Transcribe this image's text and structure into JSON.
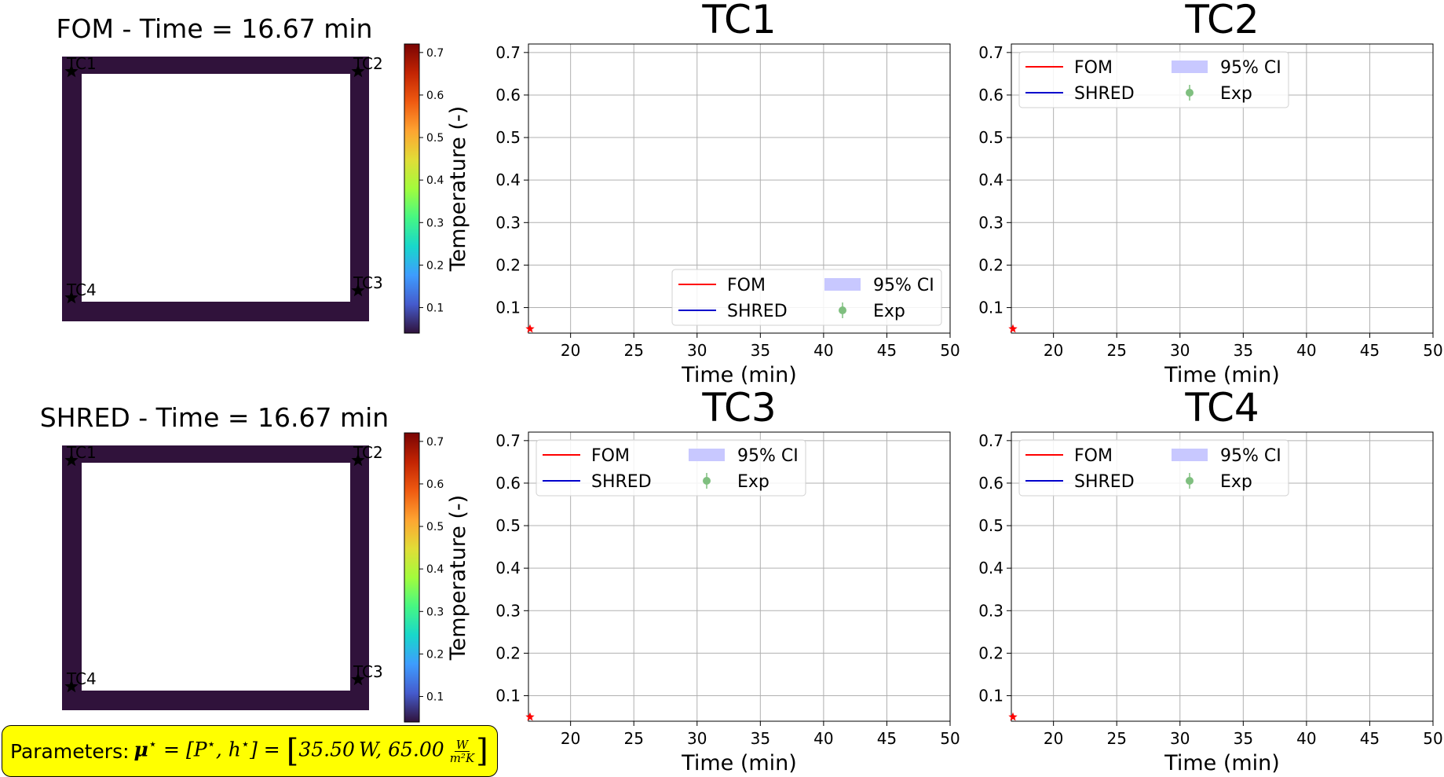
{
  "colors": {
    "fom_line": "#ff0000",
    "shred_line": "#0000cc",
    "ci_fill": "#c8c8ff",
    "exp_marker": "#7fbf7f",
    "field_fill": "#30123b",
    "grid": "#b0b0b0",
    "param_box_bg": "#ffff00"
  },
  "field_panels": [
    {
      "title": "FOM - Time = 16.67 min"
    },
    {
      "title": "SHRED - Time = 16.67 min"
    }
  ],
  "thermocouple_labels": [
    "TC1",
    "TC2",
    "TC3",
    "TC4"
  ],
  "colorbar": {
    "label": "Temperature (-)",
    "ticks": [
      "0.1",
      "0.2",
      "0.3",
      "0.4",
      "0.5",
      "0.6",
      "0.7"
    ],
    "range": [
      0.04,
      0.72
    ],
    "colormap": "turbo"
  },
  "legend_entries": [
    "FOM",
    "SHRED",
    "95% CI",
    "Exp"
  ],
  "chart_data": [
    {
      "type": "line",
      "title": "TC1",
      "xlabel": "Time (min)",
      "ylabel": "",
      "xlim": [
        16.67,
        50
      ],
      "ylim": [
        0.04,
        0.72
      ],
      "xticks": [
        20,
        25,
        30,
        35,
        40,
        45,
        50
      ],
      "yticks": [
        0.1,
        0.2,
        0.3,
        0.4,
        0.5,
        0.6,
        0.7
      ],
      "grid": true,
      "legend": "lower-right",
      "series": [
        {
          "name": "FOM",
          "x": [
            16.67
          ],
          "y": [
            0.05
          ]
        },
        {
          "name": "SHRED",
          "x": [
            16.67
          ],
          "y": [
            0.05
          ]
        }
      ],
      "markers": [
        {
          "x": 16.67,
          "y": 0.05,
          "symbol": "star",
          "color": "#ff0000"
        }
      ]
    },
    {
      "type": "line",
      "title": "TC2",
      "xlabel": "Time (min)",
      "ylabel": "",
      "xlim": [
        16.67,
        50
      ],
      "ylim": [
        0.04,
        0.72
      ],
      "xticks": [
        20,
        25,
        30,
        35,
        40,
        45,
        50
      ],
      "yticks": [
        0.1,
        0.2,
        0.3,
        0.4,
        0.5,
        0.6,
        0.7
      ],
      "grid": true,
      "legend": "upper-left",
      "series": [
        {
          "name": "FOM",
          "x": [
            16.67
          ],
          "y": [
            0.05
          ]
        },
        {
          "name": "SHRED",
          "x": [
            16.67
          ],
          "y": [
            0.05
          ]
        }
      ],
      "markers": [
        {
          "x": 16.67,
          "y": 0.05,
          "symbol": "star",
          "color": "#ff0000"
        }
      ]
    },
    {
      "type": "line",
      "title": "TC3",
      "xlabel": "Time (min)",
      "ylabel": "",
      "xlim": [
        16.67,
        50
      ],
      "ylim": [
        0.04,
        0.72
      ],
      "xticks": [
        20,
        25,
        30,
        35,
        40,
        45,
        50
      ],
      "yticks": [
        0.1,
        0.2,
        0.3,
        0.4,
        0.5,
        0.6,
        0.7
      ],
      "grid": true,
      "legend": "upper-left",
      "series": [
        {
          "name": "FOM",
          "x": [
            16.67
          ],
          "y": [
            0.05
          ]
        },
        {
          "name": "SHRED",
          "x": [
            16.67
          ],
          "y": [
            0.05
          ]
        }
      ],
      "markers": [
        {
          "x": 16.67,
          "y": 0.05,
          "symbol": "star",
          "color": "#ff0000"
        }
      ]
    },
    {
      "type": "line",
      "title": "TC4",
      "xlabel": "Time (min)",
      "ylabel": "",
      "xlim": [
        16.67,
        50
      ],
      "ylim": [
        0.04,
        0.72
      ],
      "xticks": [
        20,
        25,
        30,
        35,
        40,
        45,
        50
      ],
      "yticks": [
        0.1,
        0.2,
        0.3,
        0.4,
        0.5,
        0.6,
        0.7
      ],
      "grid": true,
      "legend": "upper-left",
      "series": [
        {
          "name": "FOM",
          "x": [
            16.67
          ],
          "y": [
            0.05
          ]
        },
        {
          "name": "SHRED",
          "x": [
            16.67
          ],
          "y": [
            0.05
          ]
        }
      ],
      "markers": [
        {
          "x": 16.67,
          "y": 0.05,
          "symbol": "star",
          "color": "#ff0000"
        }
      ]
    }
  ],
  "parameters": {
    "label": "Parameters:",
    "p_value": "35.50",
    "p_unit": "W",
    "h_value": "65.00",
    "h_unit_num": "W",
    "h_unit_den": "m²K"
  }
}
